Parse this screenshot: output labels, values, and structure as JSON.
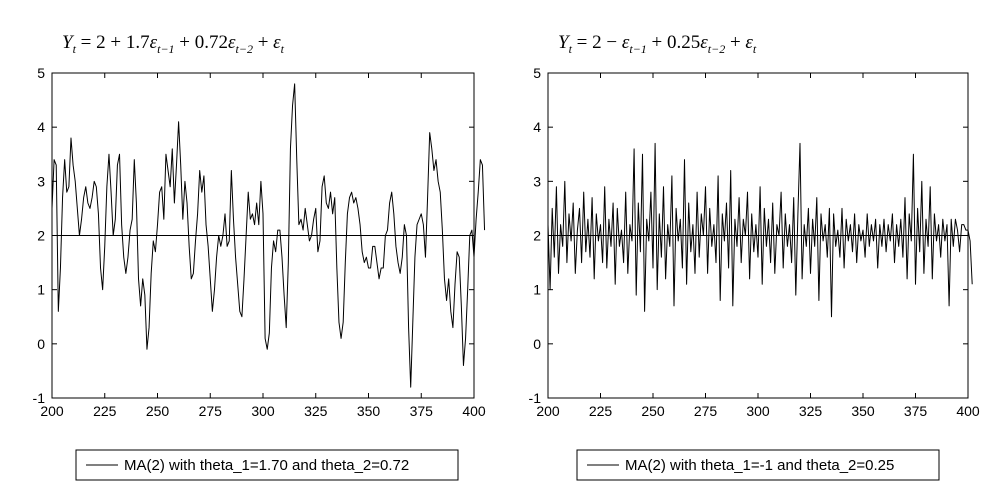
{
  "chart_data": [
    {
      "type": "line",
      "title": "Y_t = 2 + 1.7 ε_{t−1} + 0.72 ε_{t−2} + ε_t",
      "title_parts": {
        "y": "Y",
        "y_sub": "t",
        "rest1": " = 2 + 1.7",
        "eps1": "ε",
        "eps1_sub": "t−1",
        "rest2": " + 0.72",
        "eps2": "ε",
        "eps2_sub": "t−2",
        "rest3": " + ",
        "eps3": "ε",
        "eps3_sub": "t"
      },
      "xlim": [
        200,
        400
      ],
      "ylim": [
        -1,
        5
      ],
      "xticks": [
        200,
        225,
        250,
        275,
        300,
        325,
        350,
        375,
        400
      ],
      "yticks": [
        -1,
        0,
        1,
        2,
        3,
        4,
        5
      ],
      "reference_line": 2,
      "legend": "MA(2) with theta_1=1.70 and theta_2=0.72",
      "legend_position": "bottom",
      "series": [
        {
          "name": "MA(2) with theta_1=1.70 and theta_2=0.72",
          "color": "#000000",
          "x_start": 200,
          "x_step": 1,
          "values": [
            2.5,
            3.4,
            3.3,
            0.6,
            1.4,
            2.7,
            3.4,
            2.8,
            2.9,
            3.8,
            3.3,
            3.0,
            2.5,
            2.0,
            2.3,
            2.7,
            2.9,
            2.6,
            2.5,
            2.7,
            3.0,
            2.9,
            2.4,
            1.4,
            1.0,
            1.8,
            2.9,
            3.5,
            2.8,
            2.0,
            2.3,
            3.3,
            3.5,
            2.2,
            1.6,
            1.3,
            1.6,
            2.1,
            2.3,
            3.4,
            2.6,
            1.2,
            0.7,
            1.2,
            0.9,
            -0.1,
            0.3,
            1.3,
            1.9,
            1.7,
            2.2,
            2.8,
            2.9,
            2.3,
            3.5,
            3.2,
            2.9,
            3.6,
            2.6,
            3.3,
            4.1,
            3.3,
            2.3,
            3.0,
            2.6,
            1.8,
            1.2,
            1.3,
            1.9,
            2.4,
            3.2,
            2.8,
            3.1,
            2.2,
            1.8,
            1.2,
            0.6,
            1.0,
            1.6,
            2.0,
            1.8,
            2.0,
            2.4,
            1.8,
            1.9,
            3.2,
            2.3,
            1.6,
            1.1,
            0.6,
            0.5,
            1.2,
            2.0,
            2.8,
            2.3,
            2.4,
            2.2,
            2.6,
            2.2,
            3.0,
            2.4,
            0.1,
            -0.1,
            0.2,
            1.4,
            1.9,
            1.7,
            2.1,
            2.1,
            1.6,
            0.9,
            0.3,
            1.5,
            3.6,
            4.4,
            4.8,
            3.4,
            2.2,
            2.3,
            2.1,
            2.5,
            2.2,
            1.9,
            2.0,
            2.3,
            2.5,
            1.7,
            1.9,
            2.9,
            3.1,
            2.6,
            2.5,
            2.8,
            2.4,
            2.7,
            1.4,
            0.4,
            0.1,
            0.4,
            1.5,
            2.4,
            2.7,
            2.8,
            2.6,
            2.7,
            2.5,
            2.2,
            1.7,
            1.5,
            1.6,
            1.4,
            1.4,
            1.8,
            1.8,
            1.5,
            1.2,
            1.4,
            1.4,
            2.0,
            2.1,
            2.6,
            2.8,
            2.4,
            1.8,
            1.5,
            1.3,
            1.6,
            2.2,
            2.0,
            0.3,
            -0.8,
            0.4,
            1.6,
            2.2,
            2.3,
            2.4,
            2.2,
            1.6,
            2.7,
            3.9,
            3.6,
            3.2,
            3.4,
            3.0,
            2.8,
            2.1,
            1.2,
            0.8,
            1.2,
            0.6,
            0.3,
            1.1,
            1.7,
            1.6,
            0.7,
            -0.4,
            0.1,
            1.0,
            2.0,
            2.1,
            1.6,
            2.3,
            2.8,
            3.4,
            3.3,
            2.1
          ]
        }
      ]
    },
    {
      "type": "line",
      "title": "Y_t = 2 − ε_{t−1} + 0.25 ε_{t−2} + ε_t",
      "title_parts": {
        "y": "Y",
        "y_sub": "t",
        "rest1": " = 2 − ",
        "eps1": "ε",
        "eps1_sub": "t−1",
        "rest2": " + 0.25",
        "eps2": "ε",
        "eps2_sub": "t−2",
        "rest3": " + ",
        "eps3": "ε",
        "eps3_sub": "t"
      },
      "xlim": [
        200,
        400
      ],
      "ylim": [
        -1,
        5
      ],
      "xticks": [
        200,
        225,
        250,
        275,
        300,
        325,
        350,
        375,
        400
      ],
      "yticks": [
        -1,
        0,
        1,
        2,
        3,
        4,
        5
      ],
      "reference_line": 2,
      "legend": "MA(2) with theta_1=-1 and theta_2=0.25",
      "legend_position": "bottom",
      "series": [
        {
          "name": "MA(2) with theta_1=-1 and theta_2=0.25",
          "color": "#000000",
          "x_start": 200,
          "x_step": 1,
          "values": [
            2.2,
            1.0,
            2.5,
            1.6,
            2.9,
            1.3,
            2.2,
            1.8,
            3.0,
            1.5,
            2.4,
            1.9,
            2.6,
            1.3,
            2.1,
            2.5,
            1.5,
            2.8,
            1.7,
            2.3,
            1.6,
            2.7,
            1.2,
            2.4,
            1.9,
            2.2,
            1.5,
            2.9,
            1.4,
            2.3,
            1.8,
            2.6,
            1.1,
            2.5,
            1.8,
            2.1,
            1.5,
            2.8,
            1.3,
            2.2,
            1.9,
            3.6,
            0.9,
            2.6,
            1.7,
            3.5,
            0.6,
            2.3,
            1.9,
            2.8,
            1.4,
            3.7,
            1.0,
            2.4,
            1.6,
            2.9,
            1.2,
            2.2,
            1.8,
            3.1,
            0.7,
            2.5,
            1.9,
            2.3,
            1.4,
            3.4,
            1.1,
            2.6,
            1.7,
            2.2,
            1.3,
            2.8,
            1.6,
            2.4,
            2.0,
            2.9,
            1.3,
            2.5,
            1.8,
            2.2,
            1.5,
            3.1,
            0.8,
            2.4,
            1.9,
            2.6,
            1.4,
            3.2,
            0.7,
            2.3,
            1.8,
            2.7,
            1.5,
            2.3,
            2.0,
            2.8,
            1.2,
            2.4,
            1.7,
            2.2,
            1.6,
            2.9,
            1.1,
            2.5,
            1.8,
            2.3,
            1.5,
            2.6,
            1.3,
            2.2,
            2.0,
            2.8,
            1.4,
            2.4,
            1.8,
            2.2,
            1.5,
            2.7,
            0.9,
            2.4,
            3.7,
            1.2,
            2.2,
            1.8,
            2.5,
            1.3,
            2.3,
            1.8,
            2.7,
            0.8,
            2.4,
            1.9,
            2.2,
            1.6,
            2.5,
            0.5,
            2.4,
            1.8,
            2.1,
            1.6,
            2.5,
            1.4,
            2.3,
            1.9,
            2.2,
            1.7,
            2.4,
            1.5,
            2.2,
            1.9,
            2.1,
            1.6,
            2.4,
            1.8,
            2.2,
            1.9,
            2.3,
            1.4,
            2.2,
            1.8,
            2.3,
            1.7,
            2.2,
            1.9,
            2.4,
            1.5,
            2.2,
            1.8,
            2.3,
            1.6,
            2.7,
            1.2,
            2.4,
            1.9,
            3.5,
            1.1,
            2.5,
            1.7,
            3.0,
            1.3,
            2.3,
            1.8,
            2.9,
            1.2,
            2.4,
            1.9,
            2.2,
            1.6,
            2.3,
            1.9,
            2.2,
            0.7,
            2.3,
            1.8,
            2.3,
            2.1,
            1.7,
            2.2,
            2.2,
            2.1,
            2.1,
            1.9,
            1.1
          ]
        }
      ]
    }
  ]
}
